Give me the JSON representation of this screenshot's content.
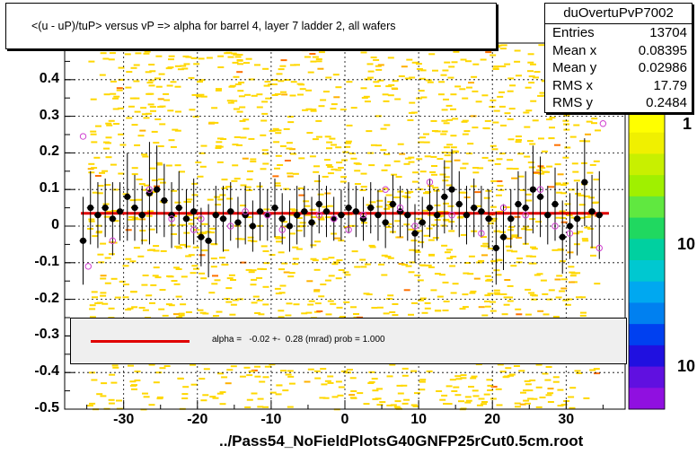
{
  "title": "<(u - uP)/tuP> versus   vP => alpha for barrel 4, layer 7 ladder 2, all wafers",
  "footer": "../Pass54_NoFieldPlotsG40GNFP25rCut0.5cm.root",
  "stats": {
    "name": "duOvertuPvP7002",
    "rows": [
      {
        "label": "Entries",
        "value": "13704"
      },
      {
        "label": "Mean x",
        "value": "0.08395"
      },
      {
        "label": "Mean y",
        "value": "0.02986"
      },
      {
        "label": "RMS x",
        "value": "17.79"
      },
      {
        "label": "RMS y",
        "value": "0.2484"
      }
    ]
  },
  "fit": {
    "text": "alpha =   -0.02 +-  0.28 (mrad) prob = 1.000",
    "line_color": "#e00000"
  },
  "colors": {
    "background_points": "#ffd700",
    "profile_markers": "#000000",
    "fit_line": "#e00000",
    "open_markers": "#d040d0"
  },
  "chart_data": {
    "type": "scatter",
    "title": "<(u - uP)/tuP> versus   vP => alpha for barrel 4, layer 7 ladder 2, all wafers",
    "xlabel": "",
    "ylabel": "",
    "xlim": [
      -38,
      38
    ],
    "ylim": [
      -0.5,
      0.5
    ],
    "x_ticks": [
      -30,
      -20,
      -10,
      0,
      10,
      20,
      30
    ],
    "x_tick_labels": [
      "-30",
      "-20",
      "-10",
      "0",
      "10",
      "20",
      "30"
    ],
    "y_ticks": [
      -0.5,
      -0.4,
      -0.3,
      -0.2,
      -0.1,
      0,
      0.1,
      0.2,
      0.3,
      0.4
    ],
    "y_tick_labels": [
      "-0.5",
      "-0.4",
      "-0.3",
      "-0.2",
      "-0.1",
      "0",
      "0.1",
      "0.2",
      "0.3",
      "0.4"
    ],
    "z_tick_labels": [
      "1",
      "10",
      "10"
    ],
    "grid": true,
    "fit_line": {
      "slope": 0.0,
      "intercept": 0.035
    },
    "profile": {
      "x": [
        -35.5,
        -34.5,
        -33.5,
        -32.5,
        -31.5,
        -30.5,
        -29.5,
        -28.5,
        -27.5,
        -26.5,
        -25.5,
        -24.5,
        -23.5,
        -22.5,
        -21.5,
        -20.5,
        -19.5,
        -18.5,
        -17.5,
        -16.5,
        -15.5,
        -14.5,
        -13.5,
        -12.5,
        -11.5,
        -10.5,
        -9.5,
        -8.5,
        -7.5,
        -6.5,
        -5.5,
        -4.5,
        -3.5,
        -2.5,
        -1.5,
        -0.5,
        0.5,
        1.5,
        2.5,
        3.5,
        4.5,
        5.5,
        6.5,
        7.5,
        8.5,
        9.5,
        10.5,
        11.5,
        12.5,
        13.5,
        14.5,
        15.5,
        16.5,
        17.5,
        18.5,
        19.5,
        20.5,
        21.5,
        22.5,
        23.5,
        24.5,
        25.5,
        26.5,
        27.5,
        28.5,
        29.5,
        30.5,
        31.5,
        32.5,
        33.5,
        34.5
      ],
      "y": [
        -0.04,
        0.05,
        0.03,
        0.05,
        0.02,
        0.04,
        0.08,
        0.05,
        0.03,
        0.09,
        0.1,
        0.07,
        0.03,
        0.05,
        0.02,
        0.04,
        -0.03,
        -0.04,
        0.03,
        0.02,
        0.04,
        0.01,
        0.03,
        0.0,
        0.04,
        0.03,
        0.05,
        0.02,
        0.0,
        0.03,
        0.04,
        0.01,
        0.06,
        0.04,
        0.02,
        0.03,
        0.05,
        0.04,
        0.02,
        0.05,
        0.03,
        0.01,
        0.06,
        0.04,
        0.03,
        -0.02,
        0.01,
        0.05,
        0.03,
        0.08,
        0.1,
        0.06,
        0.03,
        0.05,
        0.04,
        0.02,
        -0.06,
        -0.03,
        0.02,
        0.06,
        0.05,
        0.1,
        0.08,
        0.03,
        0.06,
        -0.03,
        0.0,
        0.02,
        0.12,
        0.04,
        0.03
      ],
      "err": [
        0.12,
        0.1,
        0.09,
        0.08,
        0.1,
        0.08,
        0.12,
        0.09,
        0.08,
        0.14,
        0.12,
        0.1,
        0.09,
        0.1,
        0.08,
        0.09,
        0.08,
        0.1,
        0.08,
        0.09,
        0.08,
        0.07,
        0.08,
        0.07,
        0.08,
        0.07,
        0.08,
        0.07,
        0.07,
        0.08,
        0.07,
        0.07,
        0.08,
        0.07,
        0.06,
        0.07,
        0.07,
        0.07,
        0.06,
        0.07,
        0.07,
        0.07,
        0.08,
        0.07,
        0.07,
        0.08,
        0.07,
        0.08,
        0.07,
        0.1,
        0.11,
        0.09,
        0.08,
        0.08,
        0.07,
        0.08,
        0.1,
        0.09,
        0.08,
        0.09,
        0.1,
        0.12,
        0.11,
        0.08,
        0.1,
        0.1,
        0.09,
        0.1,
        0.12,
        0.1,
        0.12
      ]
    },
    "open_points": {
      "x": [
        -35.5,
        -34.8,
        -31.5,
        -26.5,
        -23.5,
        -20.5,
        -19.5,
        -15.5,
        -13.5,
        -10.5,
        -8.5,
        -3.5,
        -1.5,
        0.5,
        2.5,
        5.5,
        7.5,
        9.5,
        11.5,
        14.5,
        18.5,
        21.5,
        24.5,
        26.5,
        28.5,
        30.5,
        34.5,
        35.0
      ],
      "y": [
        0.245,
        -0.11,
        -0.04,
        0.1,
        0.02,
        -0.01,
        0.02,
        0.0,
        0.04,
        0.03,
        -0.01,
        0.03,
        0.02,
        -0.01,
        0.03,
        0.1,
        0.05,
        0.0,
        0.12,
        0.03,
        -0.02,
        0.05,
        0.03,
        0.1,
        0.0,
        -0.02,
        -0.06,
        0.28
      ]
    }
  }
}
